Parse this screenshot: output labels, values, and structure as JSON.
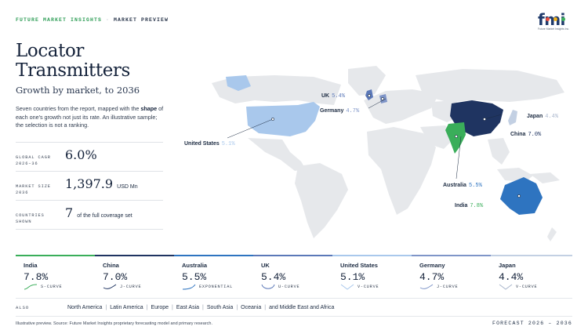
{
  "header": {
    "brand": "FUTURE MARKET INSIGHTS",
    "separator": "·",
    "section": "MARKET PREVIEW",
    "logo_text": "fmi",
    "logo_sub": "Future Market Insights Inc."
  },
  "title_line1": "Locator",
  "title_line2": "Transmitters",
  "subtitle": "Growth by market, to 2036",
  "description": {
    "pre": "Seven countries from the report, mapped with the ",
    "bold": "shape",
    "post": " of each one's growth not just its rate. An illustrative sample; the selection is not a ranking."
  },
  "stats": [
    {
      "label_line1": "GLOBAL CAGR",
      "label_line2": "2026–36",
      "value": "6.0%",
      "unit": ""
    },
    {
      "label_line1": "MARKET SIZE",
      "label_line2": "2036",
      "value": "1,397.9",
      "unit": "USD Mn"
    },
    {
      "label_line1": "COUNTRIES",
      "label_line2": "SHOWN",
      "value": "7",
      "unit": "of the full coverage set"
    }
  ],
  "colors": {
    "india": "#3aae5a",
    "china": "#1f3461",
    "australia": "#2e74c0",
    "uk": "#5b78b8",
    "united_states": "#a9c8ec",
    "germany": "#7f95c8",
    "japan": "#c3d0e3",
    "land": "#e6e8eb"
  },
  "chart_data": {
    "type": "map",
    "title": "Growth by market, to 2036",
    "countries": [
      {
        "name": "India",
        "cagr": 7.8,
        "cagr_label": "7.8%",
        "curve": "S-CURVE",
        "icon": "s-curve-icon"
      },
      {
        "name": "China",
        "cagr": 7.0,
        "cagr_label": "7.0%",
        "curve": "J-CURVE",
        "icon": "j-curve-icon"
      },
      {
        "name": "Australia",
        "cagr": 5.5,
        "cagr_label": "5.5%",
        "curve": "EXPONENTIAL",
        "icon": "exponential-curve-icon"
      },
      {
        "name": "UK",
        "cagr": 5.4,
        "cagr_label": "5.4%",
        "curve": "U-CURVE",
        "icon": "u-curve-icon"
      },
      {
        "name": "United States",
        "cagr": 5.1,
        "cagr_label": "5.1%",
        "curve": "V-CURVE",
        "icon": "v-curve-icon"
      },
      {
        "name": "Germany",
        "cagr": 4.7,
        "cagr_label": "4.7%",
        "curve": "J-CURVE",
        "icon": "j-curve-icon"
      },
      {
        "name": "Japan",
        "cagr": 4.4,
        "cagr_label": "4.4%",
        "curve": "V-CURVE",
        "icon": "v-curve-icon"
      }
    ]
  },
  "also": {
    "label": "ALSO",
    "regions": [
      "North America",
      "Latin America",
      "Europe",
      "East Asia",
      "South Asia",
      "Oceania",
      "and Middle East and Africa"
    ]
  },
  "footer": {
    "note": "Illustrative preview. Source: Future Market Insights proprietary forecasting model and primary research.",
    "forecast": "FORECAST 2026 – 2036"
  }
}
